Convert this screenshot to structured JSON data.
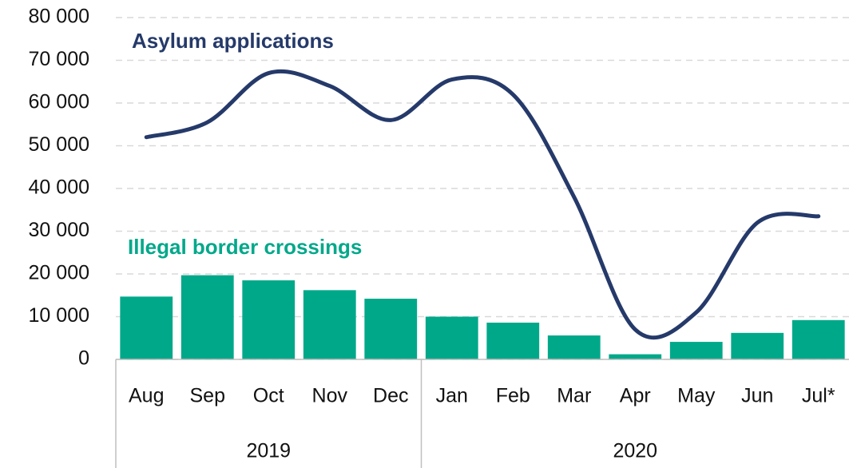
{
  "chart_data": {
    "type": "bar_line",
    "categories": [
      "Aug",
      "Sep",
      "Oct",
      "Nov",
      "Dec",
      "Jan",
      "Feb",
      "Mar",
      "Apr",
      "May",
      "Jun",
      "Jul*"
    ],
    "groups": [
      {
        "label": "2019",
        "span": 5
      },
      {
        "label": "2020",
        "span": 7
      }
    ],
    "series": [
      {
        "name": "Illegal border crossings",
        "type": "bar",
        "color": "#00a88a",
        "values": [
          14700,
          19700,
          18500,
          16200,
          14200,
          10000,
          8600,
          5600,
          1200,
          4100,
          6200,
          9200
        ]
      },
      {
        "name": "Asylum applications",
        "type": "line",
        "color": "#253a6a",
        "values": [
          52000,
          55500,
          67000,
          64000,
          56000,
          65500,
          62000,
          38000,
          7000,
          11000,
          32000,
          33500
        ]
      }
    ],
    "ylim": [
      0,
      80000
    ],
    "yticks": [
      {
        "value": 0,
        "label": "0"
      },
      {
        "value": 10000,
        "label": "10 000"
      },
      {
        "value": 20000,
        "label": "20 000"
      },
      {
        "value": 30000,
        "label": "30 000"
      },
      {
        "value": 40000,
        "label": "40 000"
      },
      {
        "value": 50000,
        "label": "50 000"
      },
      {
        "value": 60000,
        "label": "60 000"
      },
      {
        "value": 70000,
        "label": "70 000"
      },
      {
        "value": 80000,
        "label": "80 000"
      }
    ],
    "grid": true
  }
}
